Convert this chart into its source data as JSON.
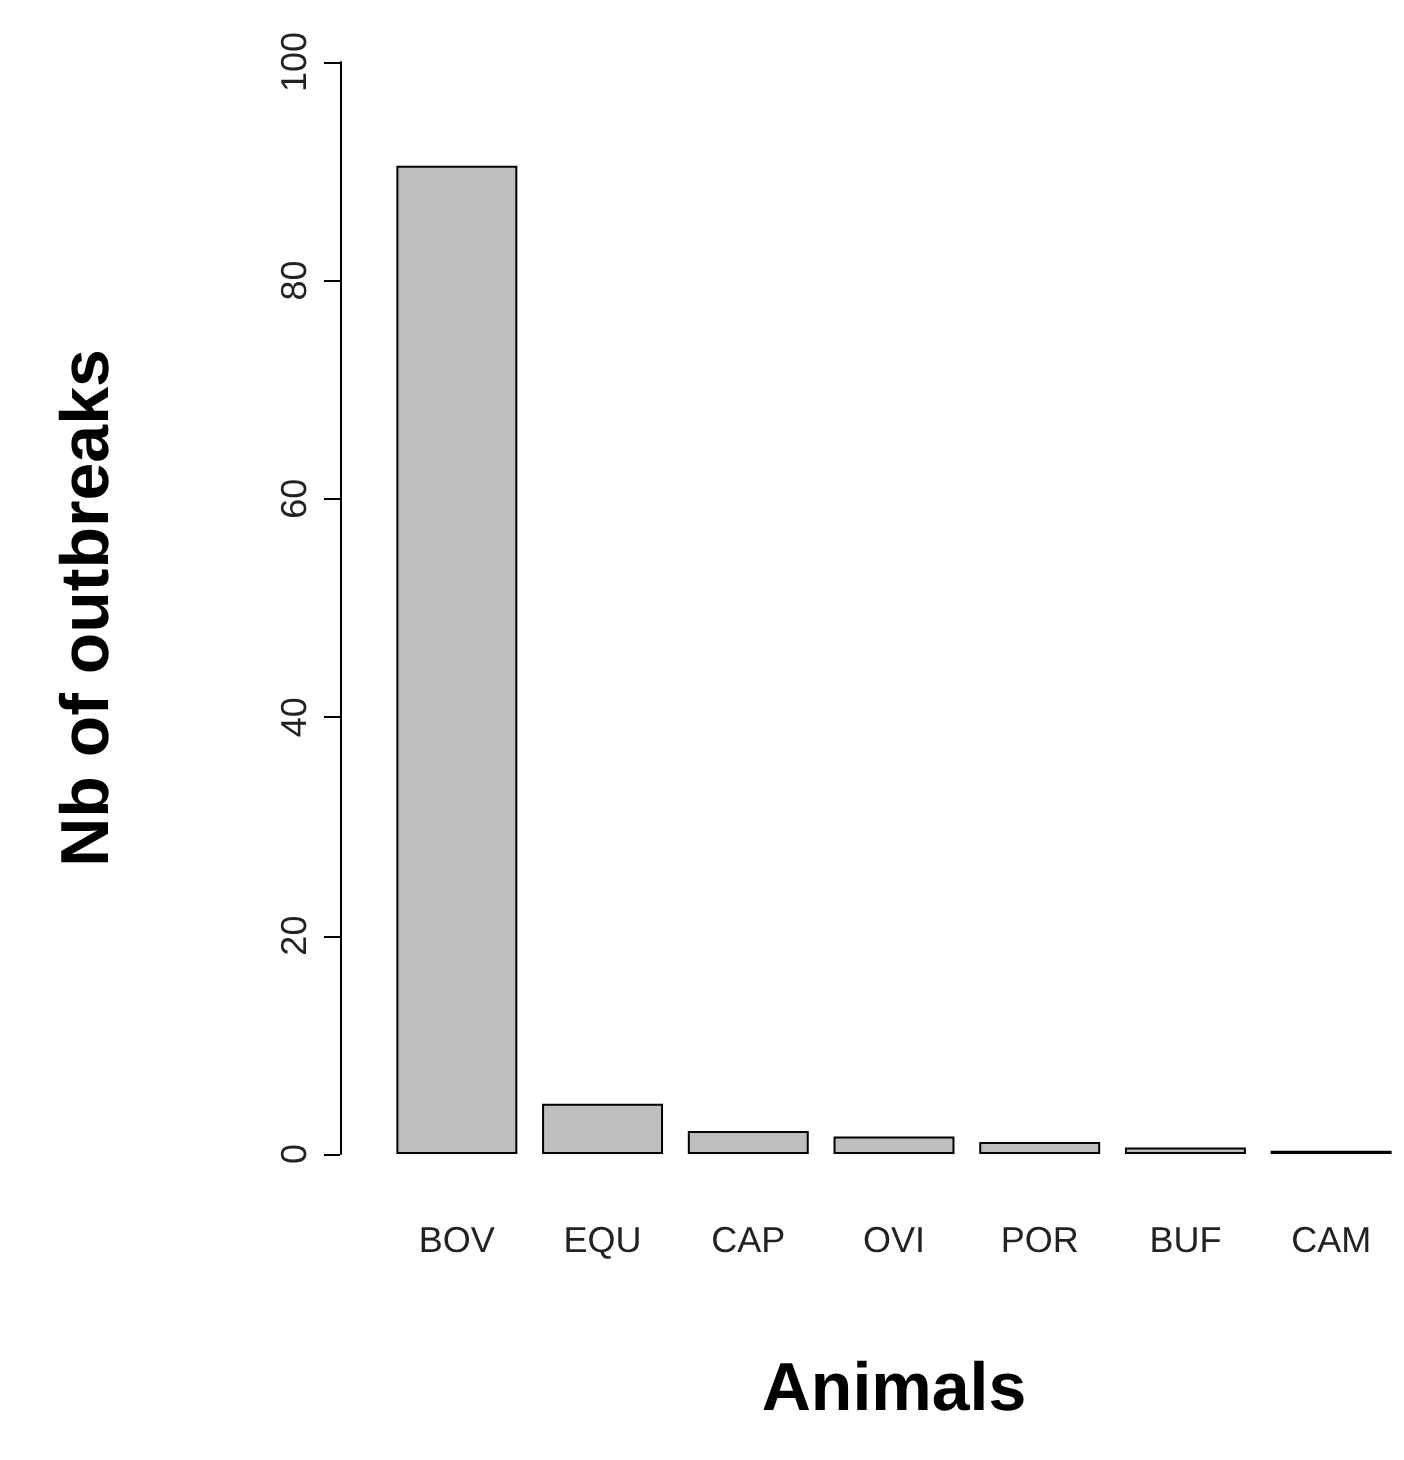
{
  "chart_data": {
    "type": "bar",
    "xlabel": "Animals",
    "ylabel": "Nb of outbreaks",
    "categories": [
      "BOV",
      "EQU",
      "CAP",
      "OVI",
      "POR",
      "BUF",
      "CAM"
    ],
    "values": [
      90.5,
      4.6,
      2.1,
      1.6,
      1.1,
      0.6,
      0.3
    ],
    "color": "#bebebe",
    "ylim": [
      0,
      100
    ],
    "yticks": [
      0,
      20,
      40,
      60,
      80,
      100
    ],
    "grid": false
  }
}
